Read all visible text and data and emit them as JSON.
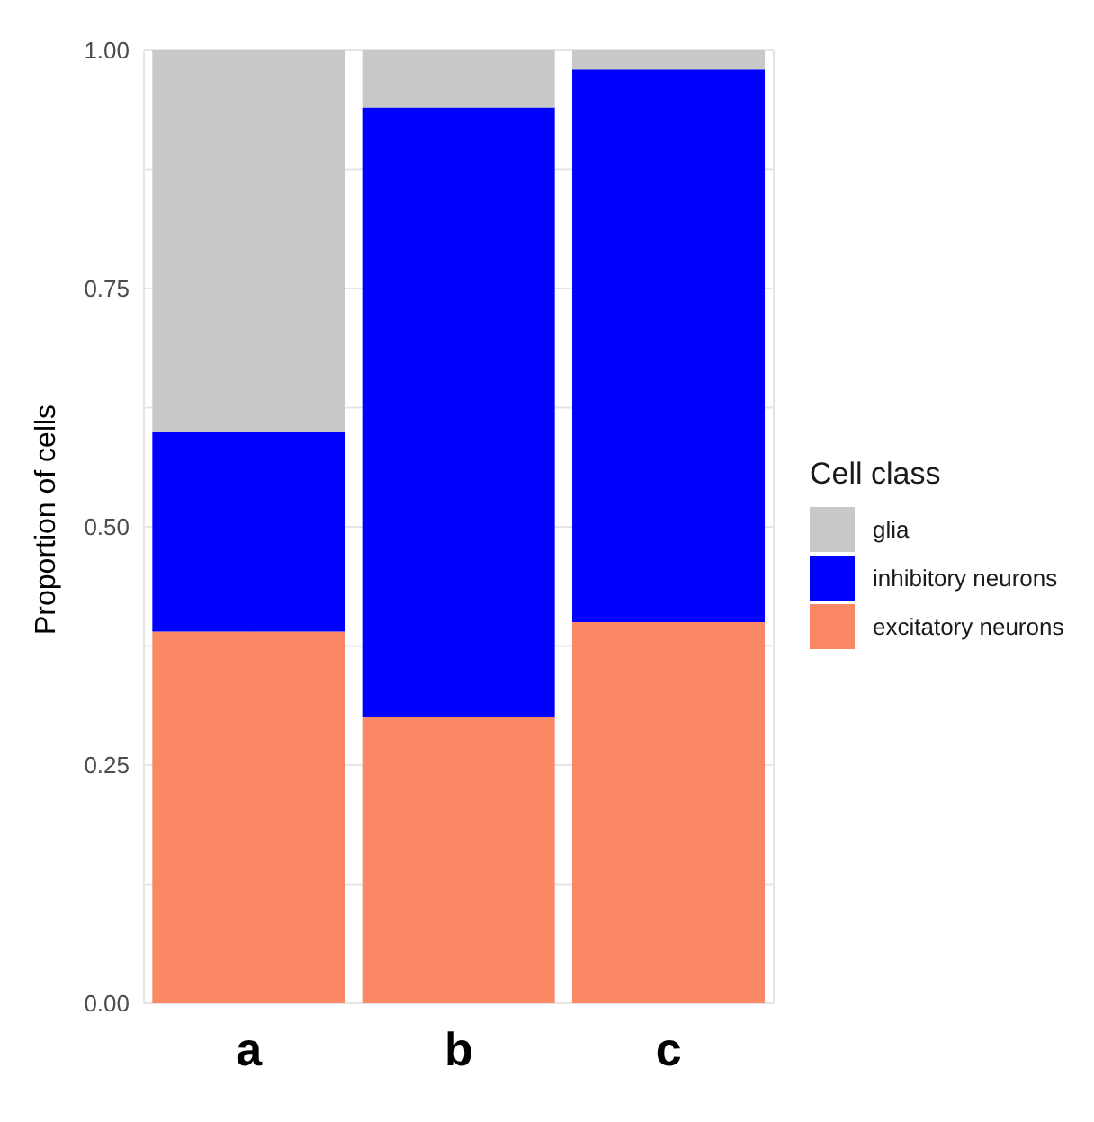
{
  "chart_data": {
    "type": "bar",
    "ylabel": "Proportion of cells",
    "legend_title": "Cell class",
    "categories": [
      "a",
      "b",
      "c"
    ],
    "stacked": true,
    "series": [
      {
        "name": "excitatory neurons",
        "color": "#fa8865",
        "values": [
          0.39,
          0.3,
          0.4
        ]
      },
      {
        "name": "inhibitory neurons",
        "color": "#0000ff",
        "values": [
          0.21,
          0.64,
          0.58
        ]
      },
      {
        "name": "glia",
        "color": "#c8c8c8",
        "values": [
          0.4,
          0.06,
          0.02
        ]
      }
    ],
    "ylim": [
      0,
      1
    ],
    "yticks": [
      {
        "value": 0,
        "label": "0.00"
      },
      {
        "value": 0.125,
        "label": null
      },
      {
        "value": 0.25,
        "label": "0.25"
      },
      {
        "value": 0.375,
        "label": null
      },
      {
        "value": 0.5,
        "label": "0.50"
      },
      {
        "value": 0.625,
        "label": null
      },
      {
        "value": 0.75,
        "label": "0.75"
      },
      {
        "value": 0.875,
        "label": null
      },
      {
        "value": 1,
        "label": "1.00"
      }
    ],
    "grid": true,
    "legend": "right"
  }
}
